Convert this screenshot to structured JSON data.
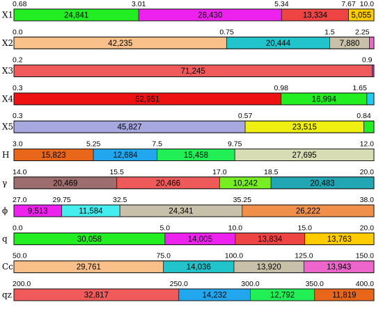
{
  "chart_data": [
    {
      "type": "bar",
      "orientation": "horizontal-stacked",
      "row_label": "X1",
      "ticks": [
        "0.68",
        "3.01",
        "5.34",
        "7.67",
        "10.0"
      ],
      "segments": [
        {
          "value": 24841,
          "label": "24,841",
          "color": "#22ee22"
        },
        {
          "value": 28430,
          "label": "28,430",
          "color": "#ee22ee"
        },
        {
          "value": 13334,
          "label": "13,334",
          "color": "#ee4444"
        },
        {
          "value": 5055,
          "label": "5,055",
          "color": "#ffcc00"
        }
      ]
    },
    {
      "type": "bar",
      "orientation": "horizontal-stacked",
      "row_label": "X2",
      "ticks": [
        "0.0",
        "0.75",
        "1.5",
        "2.25"
      ],
      "segments": [
        {
          "value": 42235,
          "label": "42,235",
          "color": "#f9c08a"
        },
        {
          "value": 20444,
          "label": "20,444",
          "color": "#22c4cc"
        },
        {
          "value": 7880,
          "label": "7,880",
          "color": "#c8c0a8"
        },
        {
          "value": 900,
          "label": "",
          "color": "#ee66cc"
        }
      ]
    },
    {
      "type": "bar",
      "orientation": "horizontal-stacked",
      "row_label": "X3",
      "ticks": [
        "0.2",
        "0.9"
      ],
      "segments": [
        {
          "value": 71245,
          "label": "71,245",
          "color": "#f05a5a"
        },
        {
          "value": 350,
          "label": "",
          "color": "#ee22ee"
        }
      ]
    },
    {
      "type": "bar",
      "orientation": "horizontal-stacked",
      "row_label": "X4",
      "ticks": [
        "0.3",
        "0.98",
        "1.65"
      ],
      "segments": [
        {
          "value": 52951,
          "label": "52,951",
          "color": "#ee1111"
        },
        {
          "value": 16994,
          "label": "16,994",
          "color": "#22ee22"
        },
        {
          "value": 1400,
          "label": "",
          "color": "#22ccee"
        }
      ]
    },
    {
      "type": "bar",
      "orientation": "horizontal-stacked",
      "row_label": "X5",
      "ticks": [
        "0.3",
        "0.57",
        "0.84"
      ],
      "segments": [
        {
          "value": 45827,
          "label": "45,827",
          "color": "#a8a8e0"
        },
        {
          "value": 23515,
          "label": "23,515",
          "color": "#eeee11"
        },
        {
          "value": 2000,
          "label": "",
          "color": "#22ee22"
        }
      ]
    },
    {
      "type": "bar",
      "orientation": "horizontal-stacked",
      "row_label": "H",
      "ticks": [
        "3.0",
        "5.25",
        "7.5",
        "9.75",
        "12.0"
      ],
      "segments": [
        {
          "value": 15823,
          "label": "15,823",
          "color": "#e8661a"
        },
        {
          "value": 12684,
          "label": "12,684",
          "color": "#22a6ee"
        },
        {
          "value": 15458,
          "label": "15,458",
          "color": "#22ee55"
        },
        {
          "value": 27695,
          "label": "27,695",
          "color": "#d8dcb4"
        }
      ]
    },
    {
      "type": "bar",
      "orientation": "horizontal-stacked",
      "row_label": "γ",
      "ticks": [
        "14.0",
        "15.5",
        "17.0",
        "18.5",
        "20.0"
      ],
      "segments": [
        {
          "value": 20469,
          "label": "20,469",
          "color": "#9e6e6e"
        },
        {
          "value": 20466,
          "label": "20,466",
          "color": "#ee5a5a"
        },
        {
          "value": 10242,
          "label": "10,242",
          "color": "#77ee22"
        },
        {
          "value": 20483,
          "label": "20,483",
          "color": "#22a6b4"
        }
      ]
    },
    {
      "type": "bar",
      "orientation": "horizontal-stacked",
      "row_label": "ϕ",
      "ticks": [
        "27.0",
        "29.75",
        "32.5",
        "35.25",
        "38.0"
      ],
      "segments": [
        {
          "value": 9513,
          "label": "9,513",
          "color": "#ee22ee"
        },
        {
          "value": 11584,
          "label": "11,584",
          "color": "#44eeee"
        },
        {
          "value": 24341,
          "label": "24,341",
          "color": "#c8c0a8"
        },
        {
          "value": 26222,
          "label": "26,222",
          "color": "#f0904a"
        }
      ]
    },
    {
      "type": "bar",
      "orientation": "horizontal-stacked",
      "row_label": "q",
      "ticks": [
        "0.0",
        "5.0",
        "10.0",
        "15.0",
        "20.0"
      ],
      "segments": [
        {
          "value": 30058,
          "label": "30,058",
          "color": "#22ee22"
        },
        {
          "value": 14005,
          "label": "14,005",
          "color": "#ee22ee"
        },
        {
          "value": 13834,
          "label": "13,834",
          "color": "#ee4444"
        },
        {
          "value": 13763,
          "label": "13,763",
          "color": "#ffcc00"
        }
      ]
    },
    {
      "type": "bar",
      "orientation": "horizontal-stacked",
      "row_label": "Cc",
      "ticks": [
        "50.0",
        "75.0",
        "100.0",
        "125.0",
        "150.0"
      ],
      "segments": [
        {
          "value": 29761,
          "label": "29,761",
          "color": "#f9c08a"
        },
        {
          "value": 14036,
          "label": "14,036",
          "color": "#22c4cc"
        },
        {
          "value": 13920,
          "label": "13,920",
          "color": "#c8c0a8"
        },
        {
          "value": 13943,
          "label": "13,943",
          "color": "#ee66cc"
        }
      ]
    },
    {
      "type": "bar",
      "orientation": "horizontal-stacked",
      "row_label": "qz",
      "ticks": [
        "200.0",
        "250.0",
        "300.0",
        "350.0",
        "400.0"
      ],
      "segments": [
        {
          "value": 32817,
          "label": "32,817",
          "color": "#f05a5a"
        },
        {
          "value": 14232,
          "label": "14,232",
          "color": "#22a6ee"
        },
        {
          "value": 12792,
          "label": "12,792",
          "color": "#22ee55"
        },
        {
          "value": 11819,
          "label": "11,819",
          "color": "#e8661a"
        }
      ]
    }
  ]
}
